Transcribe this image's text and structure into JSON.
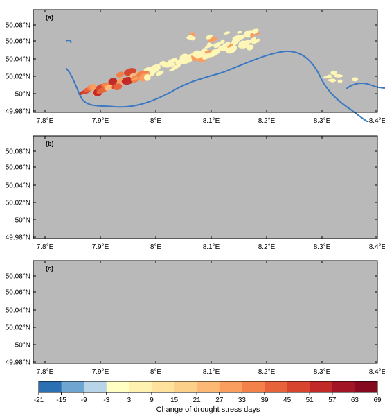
{
  "figure": {
    "panels": [
      {
        "tag": "(a)",
        "scenario": "a"
      },
      {
        "tag": "(b)",
        "scenario": "b"
      },
      {
        "tag": "(c)",
        "scenario": "c"
      }
    ],
    "lon_ticks": [
      "7.8°E",
      "7.9°E",
      "8°E",
      "8.1°E",
      "8.2°E",
      "8.3°E",
      "8.4°E"
    ],
    "lat_ticks": [
      "50.08°N",
      "50.06°N",
      "50.04°N",
      "50.02°N",
      "50°N",
      "49.98°N"
    ],
    "lon_range": [
      7.77,
      8.415
    ],
    "lat_range": [
      49.965,
      50.093
    ],
    "colorbar": {
      "title": "Change of drought stress days",
      "ticks": [
        "-21",
        "-15",
        "-9",
        "-3",
        "3",
        "9",
        "15",
        "21",
        "27",
        "33",
        "39",
        "45",
        "51",
        "57",
        "63",
        "69"
      ],
      "colors": [
        "#2b70b2",
        "#6fa6d1",
        "#b7d4e8",
        "#ffffc4",
        "#fff1b0",
        "#ffe29e",
        "#fdd08a",
        "#fcb874",
        "#f99e5e",
        "#f2814a",
        "#e7633b",
        "#d8452f",
        "#c12a27",
        "#a11524",
        "#850a1f"
      ]
    },
    "colors": {
      "background": "#b9b9b9",
      "river": "#3a78c2",
      "vineyard": "#fdf6b6"
    }
  }
}
